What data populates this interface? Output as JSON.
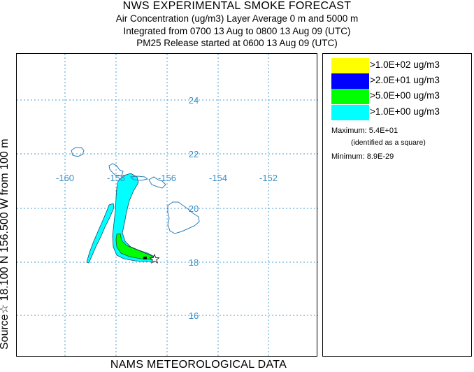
{
  "header": {
    "title": "NWS EXPERIMENTAL SMOKE FORECAST",
    "line2": "Air Concentration (ug/m3) Layer Average    0 m and  5000 m",
    "line3": "Integrated from 0700 13 Aug to 0800 13 Aug 09 (UTC)",
    "line4": "PM25 Release started at 0600 13 Aug 09 (UTC)"
  },
  "side_label": "Source☆ 18.100 N 156.500  W      from  100 m",
  "footer": "NAMS METEOROLOGICAL DATA",
  "map": {
    "grid_color": "#4a9fd6",
    "label_color": "#3a8fc6",
    "coast_color": "#2a7fb6",
    "lon_labels": [
      "-160",
      "-158",
      "-156",
      "-154",
      "-152"
    ],
    "lat_labels": [
      "24",
      "22",
      "20",
      "18",
      "16"
    ],
    "source_marker": "star-icon"
  },
  "legend": {
    "items": [
      {
        "label": ">1.0E+02 ug/m3",
        "color": "#ffff00"
      },
      {
        "label": ">2.0E+01 ug/m3",
        "color": "#0000ff"
      },
      {
        "label": ">5.0E+00 ug/m3",
        "color": "#00ff00"
      },
      {
        "label": ">1.0E+00 ug/m3",
        "color": "#00ffff"
      }
    ],
    "maximum_label": "Maximum:",
    "maximum_value": "5.4E+01",
    "maximum_note": "(identified as a square)",
    "minimum_label": "Minimum:",
    "minimum_value": "8.9E-29"
  }
}
